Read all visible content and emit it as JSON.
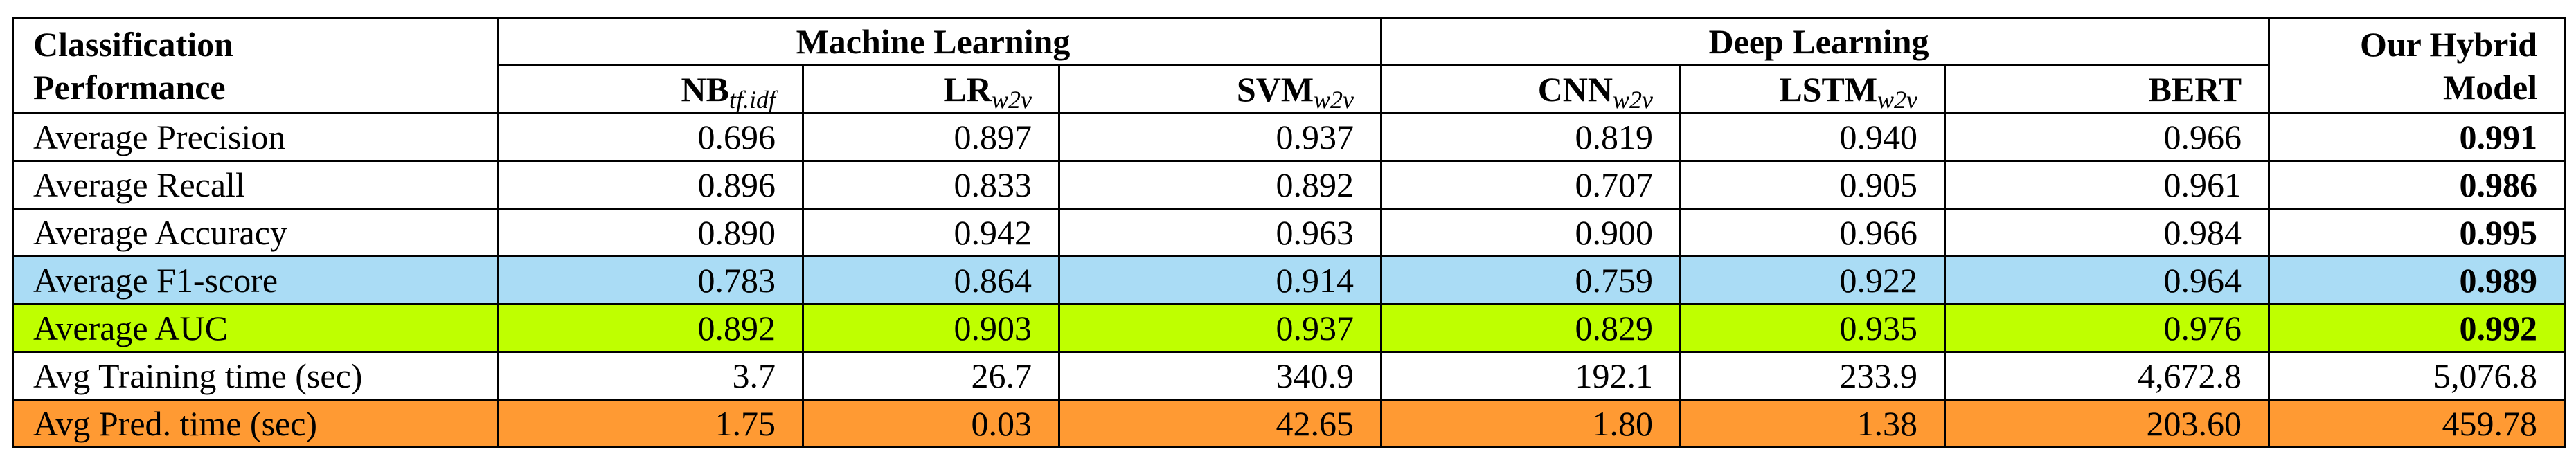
{
  "header": {
    "corner": [
      "Classification",
      "Performance"
    ],
    "groups": [
      "Machine Learning",
      "Deep Learning"
    ],
    "final": [
      "Our Hybrid",
      "Model"
    ],
    "columns": [
      {
        "base": "NB",
        "sub": "tf.idf"
      },
      {
        "base": "LR",
        "sub": "w2v"
      },
      {
        "base": "SVM",
        "sub": "w2v"
      },
      {
        "base": "CNN",
        "sub": "w2v"
      },
      {
        "base": "LSTM",
        "sub": "w2v"
      },
      {
        "base": "BERT"
      }
    ]
  },
  "table": {
    "rows": [
      {
        "label": "Average Precision",
        "values": [
          "0.696",
          "0.897",
          "0.937",
          "0.819",
          "0.940",
          "0.966",
          "0.991"
        ],
        "bold_last": true
      },
      {
        "label": "Average Recall",
        "values": [
          "0.896",
          "0.833",
          "0.892",
          "0.707",
          "0.905",
          "0.961",
          "0.986"
        ],
        "bold_last": true
      },
      {
        "label": "Average Accuracy",
        "values": [
          "0.890",
          "0.942",
          "0.963",
          "0.900",
          "0.966",
          "0.984",
          "0.995"
        ],
        "bold_last": true
      },
      {
        "label": "Average F1-score",
        "values": [
          "0.783",
          "0.864",
          "0.914",
          "0.759",
          "0.922",
          "0.964",
          "0.989"
        ],
        "bold_last": true,
        "highlight": "#aadcf5"
      },
      {
        "label": "Average AUC",
        "values": [
          "0.892",
          "0.903",
          "0.937",
          "0.829",
          "0.935",
          "0.976",
          "0.992"
        ],
        "bold_last": true,
        "highlight": "#bfff00"
      },
      {
        "label": "Avg Training time (sec)",
        "values": [
          "3.7",
          "26.7",
          "340.9",
          "192.1",
          "233.9",
          "4,672.8",
          "5,076.8"
        ],
        "bold_last": false
      },
      {
        "label": "Avg Pred. time (sec)",
        "values": [
          "1.75",
          "0.03",
          "42.65",
          "1.80",
          "1.38",
          "203.60",
          "459.78"
        ],
        "bold_last": false,
        "highlight": "#ff9a33"
      }
    ]
  }
}
